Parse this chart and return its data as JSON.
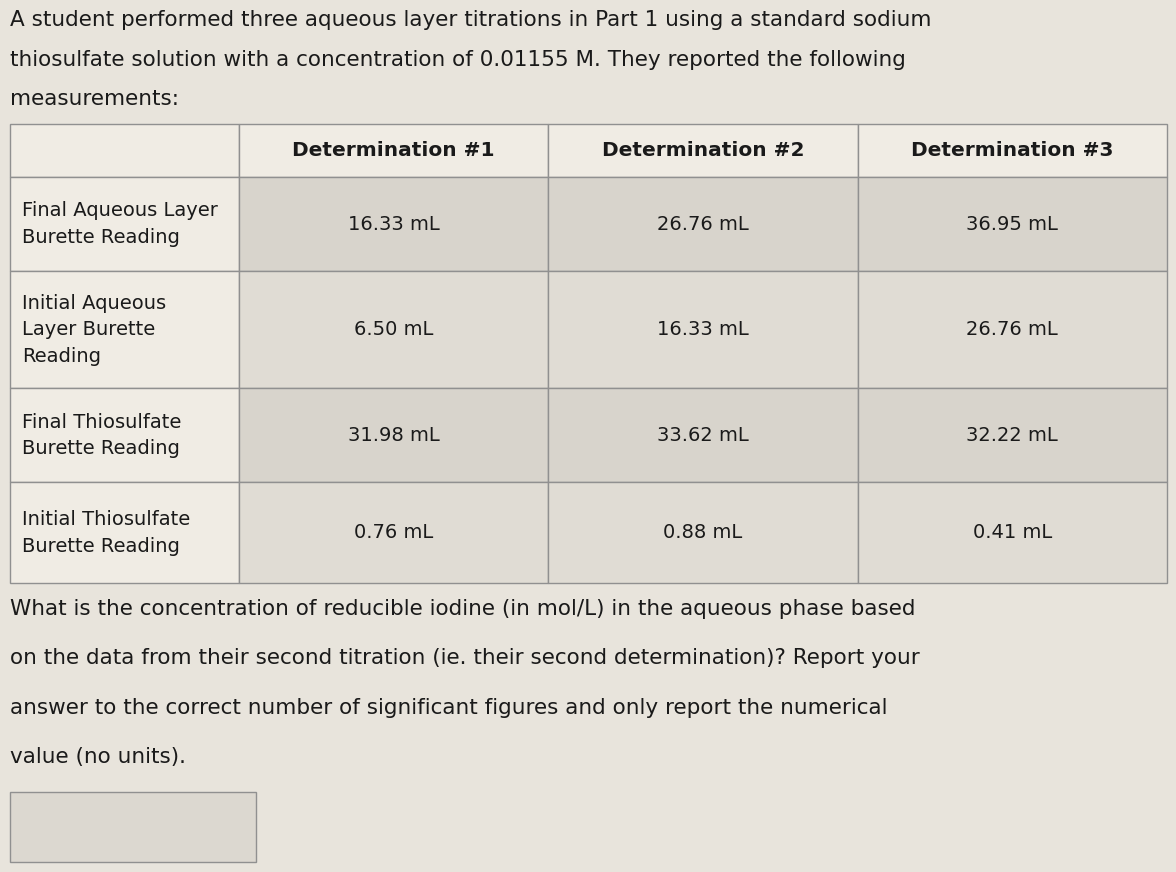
{
  "intro_text": "A student performed three aqueous layer titrations in Part 1 using a standard sodium\nthiosulfate solution with a concentration of 0.01155 M. They reported the following\nmeasurements:",
  "col_headers": [
    "",
    "Determination #1",
    "Determination #2",
    "Determination #3"
  ],
  "row_labels": [
    "Final Aqueous Layer\nBurette Reading",
    "Initial Aqueous\nLayer Burette\nReading",
    "Final Thiosulfate\nBurette Reading",
    "Initial Thiosulfate\nBurette Reading"
  ],
  "table_data": [
    [
      "16.33 mL",
      "26.76 mL",
      "36.95 mL"
    ],
    [
      "6.50 mL",
      "16.33 mL",
      "26.76 mL"
    ],
    [
      "31.98 mL",
      "33.62 mL",
      "32.22 mL"
    ],
    [
      "0.76 mL",
      "0.88 mL",
      "0.41 mL"
    ]
  ],
  "question_text": "What is the concentration of reducible iodine (in mol/L) in the aqueous phase based\non the data from their second titration (ie. their second determination)? Report your\nanswer to the correct number of significant figures and only report the numerical\nvalue (no units).",
  "bg_color": "#e8e4dc",
  "table_row_label_bg": "#f0ece4",
  "table_data_bg_odd": "#d8d4cc",
  "table_data_bg_even": "#e0dcd4",
  "table_header_bg": "#f0ece4",
  "border_color": "#909090",
  "text_color": "#1a1a1a",
  "answer_box_bg": "#dcd8d0",
  "font_size_intro": 15.5,
  "font_size_header": 14.5,
  "font_size_row_label": 14.0,
  "font_size_cell": 14.0,
  "font_size_question": 15.5
}
